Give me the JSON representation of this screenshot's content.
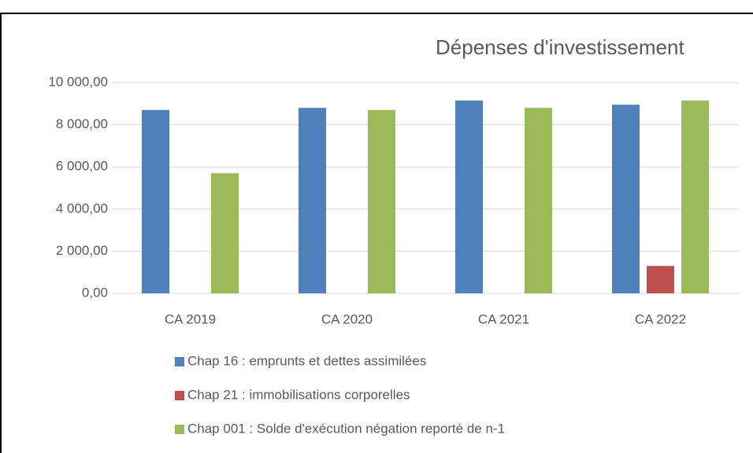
{
  "chart_data": {
    "type": "bar",
    "title": "Dépenses d'investissement",
    "categories": [
      "CA 2019",
      "CA 2020",
      "CA 2021",
      "CA 2022"
    ],
    "series": [
      {
        "name": "Chap 16 : emprunts et dettes assimilées",
        "color": "#4f81bd",
        "values": [
          8700,
          8800,
          9150,
          8950
        ]
      },
      {
        "name": "Chap 21 : immobilisations corporelles",
        "color": "#c0504d",
        "values": [
          0,
          0,
          0,
          1300
        ]
      },
      {
        "name": "Chap 001 : Solde d'exécution négation reporté de n-1",
        "color": "#9bbb59",
        "values": [
          5700,
          8700,
          8800,
          9150
        ]
      }
    ],
    "ylim": [
      0,
      10000
    ],
    "yticks": [
      {
        "value": 0,
        "label": "0,00"
      },
      {
        "value": 2000,
        "label": "2 000,00"
      },
      {
        "value": 4000,
        "label": "4 000,00"
      },
      {
        "value": 6000,
        "label": "6 000,00"
      },
      {
        "value": 8000,
        "label": "8 000,00"
      },
      {
        "value": 10000,
        "label": "10 000,00"
      }
    ],
    "grid": true,
    "legend": "bottom"
  }
}
